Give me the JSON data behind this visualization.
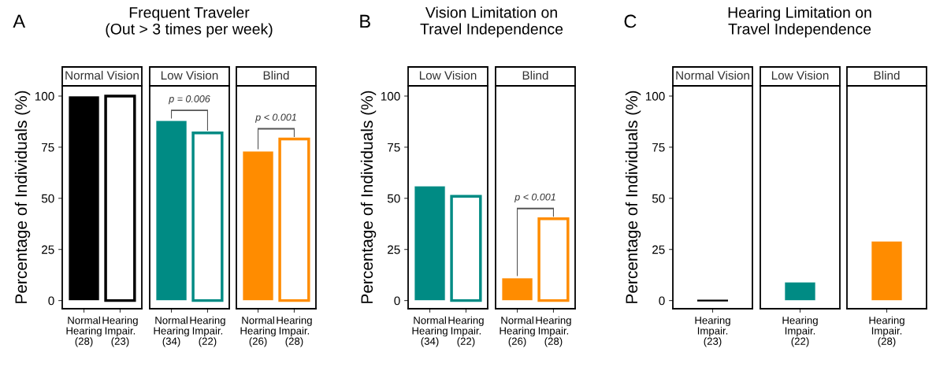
{
  "chart_data": [
    {
      "type": "bar",
      "title": "Frequent Traveler\n(Out > 3 times per week)",
      "subtitle": "Normal Vision",
      "ylabel": "Percentage of Individuals (%)",
      "annotations": [
        "A"
      ],
      "categories": [
        "Normal\nHearing\n(28)",
        "Hearing\nImpair.\n(23)"
      ],
      "ylim": [
        -4,
        105
      ],
      "yticks": [
        0,
        25,
        50,
        75,
        100
      ],
      "series": [
        {
          "color": "#000000",
          "values": [
            100,
            null
          ]
        },
        {
          "color": "#000000",
          "values": [
            null,
            100
          ]
        }
      ]
    },
    {
      "type": "bar",
      "subtitle": "Low Vision",
      "annotations": [
        "p = 0.006"
      ],
      "categories": [
        "Normal\nHearing\n(34)",
        "Hearing\nImpair.\n(22)"
      ],
      "ylim": [
        -4,
        105
      ],
      "tick_labels": "x",
      "series": [
        {
          "color": "#008b84",
          "values": [
            88,
            null
          ]
        },
        {
          "color": "#008b84",
          "values": [
            null,
            82
          ]
        }
      ]
    },
    {
      "type": "bar",
      "subtitle": "Blind",
      "annotations": [
        "p < 0.001"
      ],
      "categories": [
        "Normal\nHearing\n(26)",
        "Hearing\nImpair.\n(28)"
      ],
      "ylim": [
        -4,
        105
      ],
      "tick_labels": "x",
      "series": [
        {
          "color": "#ff8c00",
          "values": [
            73,
            null
          ]
        },
        {
          "color": "#ff8c00",
          "values": [
            null,
            79
          ]
        }
      ]
    },
    {
      "type": "bar",
      "title": "Vision Limitation on\nTravel Independence",
      "subtitle": "Low Vision",
      "ylabel": "Percentage of Individuals (%)",
      "annotations": [
        "B"
      ],
      "categories": [
        "Normal\nHearing\n(34)",
        "Hearing\nImpair.\n(22)"
      ],
      "ylim": [
        -4,
        105
      ],
      "yticks": [
        0,
        25,
        50,
        75,
        100
      ],
      "series": [
        {
          "color": "#008b84",
          "values": [
            56,
            null
          ]
        },
        {
          "color": "#008b84",
          "values": [
            null,
            51
          ]
        }
      ]
    },
    {
      "type": "bar",
      "subtitle": "Blind",
      "annotations": [
        "p < 0.001"
      ],
      "categories": [
        "Normal\nHearing\n(26)",
        "Hearing\nImpair.\n(28)"
      ],
      "ylim": [
        -4,
        105
      ],
      "tick_labels": "x",
      "series": [
        {
          "color": "#ff8c00",
          "values": [
            11,
            null
          ]
        },
        {
          "color": "#ff8c00",
          "values": [
            null,
            40
          ]
        }
      ]
    },
    {
      "type": "bar",
      "title": "Hearing Limitation on\nTravel Independence",
      "subtitle": "Normal Vision",
      "ylabel": "Percentage of Individuals (%)",
      "annotations": [
        "C"
      ],
      "categories": [
        "Hearing\nImpair.\n(23)"
      ],
      "ylim": [
        -4,
        105
      ],
      "yticks": [
        0,
        25,
        50,
        75,
        100
      ],
      "series": [
        {
          "color": "#000000",
          "values": [
            0
          ]
        }
      ]
    },
    {
      "type": "bar",
      "subtitle": "Low Vision",
      "categories": [
        "Hearing\nImpair.\n(22)"
      ],
      "ylim": [
        -4,
        105
      ],
      "tick_labels": "x",
      "series": [
        {
          "color": "#008b84",
          "values": [
            9
          ]
        }
      ]
    },
    {
      "type": "bar",
      "subtitle": "Blind",
      "categories": [
        "Hearing\nImpair.\n(28)"
      ],
      "ylim": [
        -4,
        105
      ],
      "tick_labels": "x",
      "series": [
        {
          "color": "#ff8c00",
          "values": [
            29
          ]
        }
      ]
    }
  ]
}
